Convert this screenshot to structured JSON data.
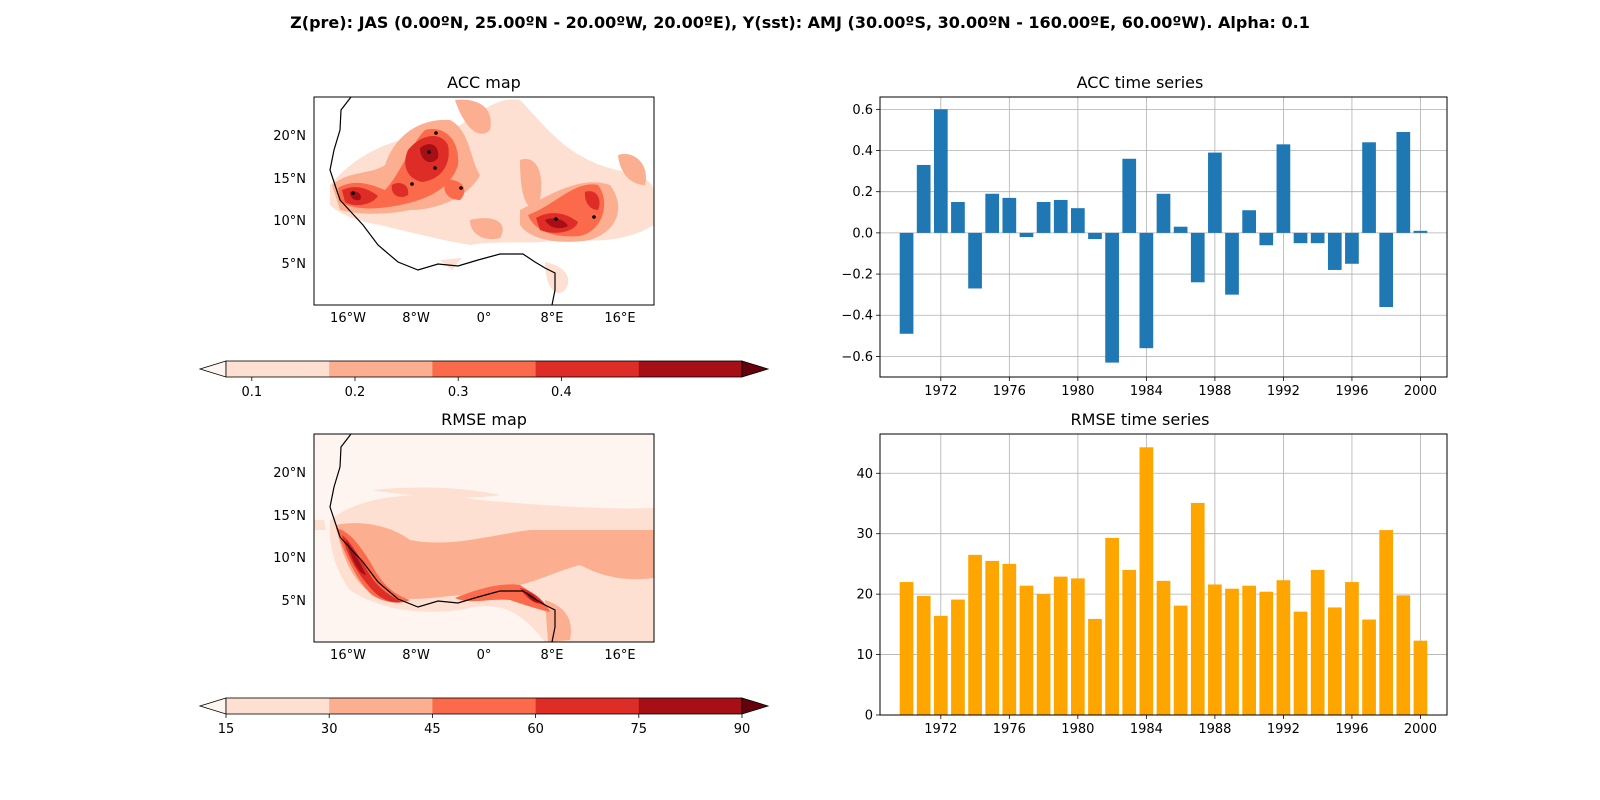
{
  "suptitle": "Z(pre): JAS (0.00ºN, 25.00ºN - 20.00ºW, 20.00ºE), Y(sst): AMJ (30.00ºS, 30.00ºN - 160.00ºE, 60.00ºW). Alpha: 0.1",
  "colors": {
    "reds": [
      "#fee0d2",
      "#fcae91",
      "#fb6a4a",
      "#de2d26",
      "#a50f15"
    ],
    "reds_under": "#fff5f0",
    "reds_over": "#67000d",
    "bar_acc": "#1f77b4",
    "bar_rmse": "#ffa500"
  },
  "chart_data": [
    {
      "name": "acc_map",
      "type": "heatmap",
      "title": "ACC map",
      "lon_ticks": [
        "16°W",
        "8°W",
        "0°",
        "8°E",
        "16°E"
      ],
      "lat_ticks": [
        "5°N",
        "10°N",
        "15°N",
        "20°N"
      ],
      "colorbar": {
        "levels": [
          0.1,
          0.2,
          0.3,
          0.4
        ],
        "tick_labels": [
          "0.1",
          "0.2",
          "0.3",
          "0.4"
        ],
        "extend": "both"
      }
    },
    {
      "name": "acc_ts",
      "type": "bar",
      "title": "ACC time series",
      "x": [
        1970,
        1971,
        1972,
        1973,
        1974,
        1975,
        1976,
        1977,
        1978,
        1979,
        1980,
        1981,
        1982,
        1983,
        1984,
        1985,
        1986,
        1987,
        1988,
        1989,
        1990,
        1991,
        1992,
        1993,
        1994,
        1995,
        1996,
        1997,
        1998,
        1999,
        2000
      ],
      "values": [
        -0.49,
        0.33,
        0.6,
        0.15,
        -0.27,
        0.19,
        0.17,
        -0.02,
        0.15,
        0.16,
        0.12,
        -0.03,
        -0.63,
        0.36,
        -0.56,
        0.19,
        0.03,
        -0.24,
        0.39,
        -0.3,
        0.11,
        -0.06,
        0.43,
        -0.05,
        -0.05,
        -0.18,
        -0.15,
        0.44,
        -0.36,
        0.49,
        0.01
      ],
      "x_ticks": [
        "1972",
        "1976",
        "1980",
        "1984",
        "1988",
        "1992",
        "1996",
        "2000"
      ],
      "y_ticks": [
        "0.6",
        "0.4",
        "0.2",
        "0.0",
        "−0.2",
        "−0.4",
        "−0.6"
      ],
      "ylim": [
        -0.7,
        0.66
      ],
      "grid": true
    },
    {
      "name": "rmse_map",
      "type": "heatmap",
      "title": "RMSE map",
      "lon_ticks": [
        "16°W",
        "8°W",
        "0°",
        "8°E",
        "16°E"
      ],
      "lat_ticks": [
        "5°N",
        "10°N",
        "15°N",
        "20°N"
      ],
      "colorbar": {
        "levels": [
          15,
          30,
          45,
          60,
          75,
          90
        ],
        "tick_labels": [
          "15",
          "30",
          "45",
          "60",
          "75",
          "90"
        ],
        "extend": "both"
      }
    },
    {
      "name": "rmse_ts",
      "type": "bar",
      "title": "RMSE time series",
      "x": [
        1970,
        1971,
        1972,
        1973,
        1974,
        1975,
        1976,
        1977,
        1978,
        1979,
        1980,
        1981,
        1982,
        1983,
        1984,
        1985,
        1986,
        1987,
        1988,
        1989,
        1990,
        1991,
        1992,
        1993,
        1994,
        1995,
        1996,
        1997,
        1998,
        1999,
        2000
      ],
      "values": [
        22.0,
        19.7,
        16.4,
        19.1,
        26.5,
        25.5,
        25.0,
        21.4,
        20.0,
        22.9,
        22.6,
        15.9,
        29.3,
        24.0,
        44.3,
        22.2,
        18.1,
        35.1,
        21.6,
        20.9,
        21.4,
        20.4,
        22.3,
        17.1,
        24.0,
        17.8,
        22.0,
        15.8,
        30.6,
        19.8,
        12.3
      ],
      "x_ticks": [
        "1972",
        "1976",
        "1980",
        "1984",
        "1988",
        "1992",
        "1996",
        "2000"
      ],
      "y_ticks": [
        "0",
        "10",
        "20",
        "30",
        "40"
      ],
      "ylim": [
        0,
        46.5
      ],
      "grid": true
    }
  ]
}
